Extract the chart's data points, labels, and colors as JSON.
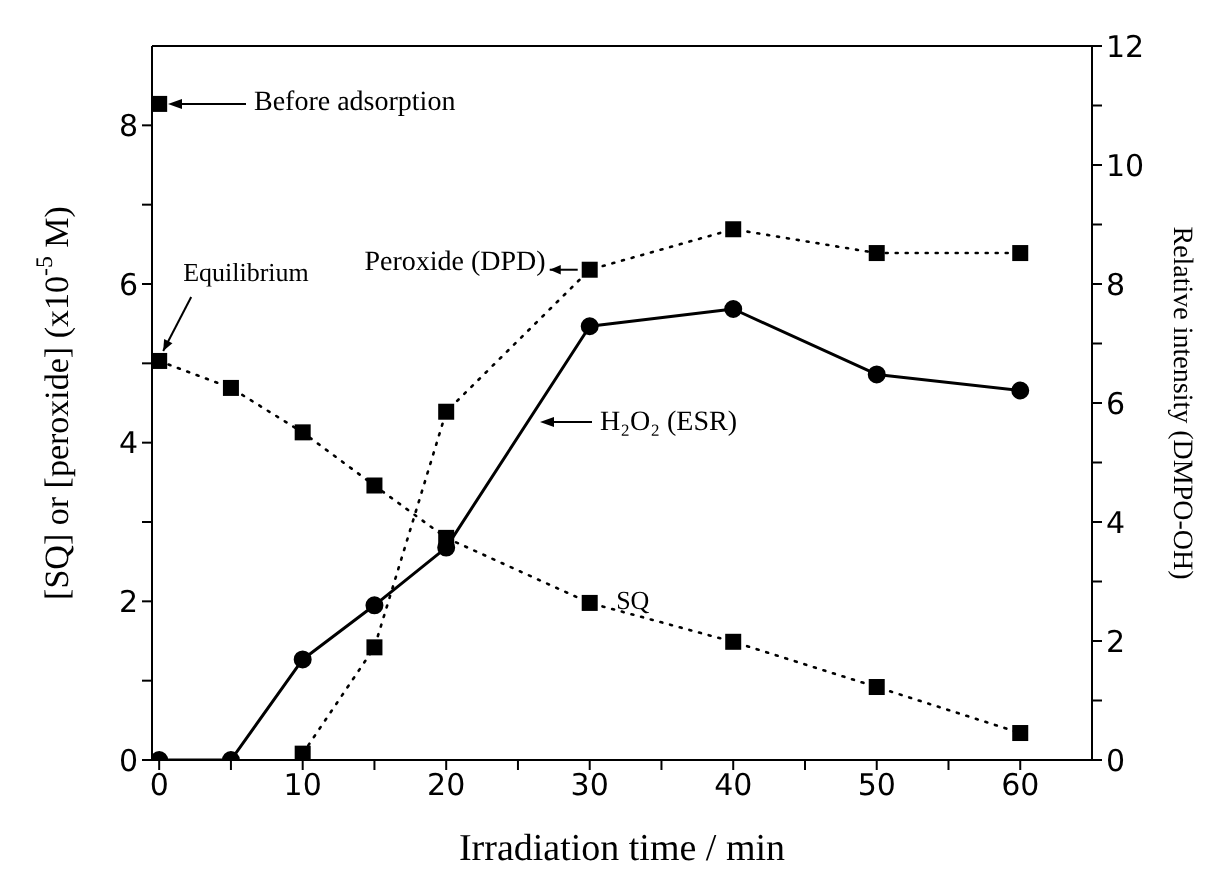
{
  "chart_data": {
    "type": "line",
    "xlabel": "Irradiation time / min",
    "ylabel": "[SQ] or [peroxide] (x10$^{-5}$ M)",
    "y2label": "Relative intensity (DMPO-OH)",
    "xlim": [
      -0.5,
      65
    ],
    "xticks": [
      0,
      {
        "value": 5,
        "label": null
      },
      10,
      {
        "value": 15,
        "label": null
      },
      20,
      {
        "value": 25,
        "label": null
      },
      30,
      {
        "value": 35,
        "label": null
      },
      40,
      {
        "value": 45,
        "label": null
      },
      50,
      {
        "value": 55,
        "label": null
      },
      60
    ],
    "ylim": [
      0,
      9
    ],
    "yticks": [
      0,
      {
        "value": 1,
        "label": null
      },
      2,
      {
        "value": 3,
        "label": null
      },
      4,
      {
        "value": 5,
        "label": null
      },
      6,
      {
        "value": 7,
        "label": null
      },
      8
    ],
    "y2lim": [
      0,
      12
    ],
    "y2ticks": [
      0,
      {
        "value": 1,
        "label": null
      },
      2,
      {
        "value": 3,
        "label": null
      },
      4,
      {
        "value": 5,
        "label": null
      },
      6,
      {
        "value": 7,
        "label": null
      },
      8,
      {
        "value": 9,
        "label": null
      },
      10,
      {
        "value": 11,
        "label": null
      },
      12
    ],
    "series": [
      {
        "type": "scatter",
        "color": "#000000",
        "marker": "square",
        "x": [
          0
        ],
        "values": [
          8.27
        ]
      },
      {
        "color": "#000000",
        "marker": "square",
        "line_style": "dotted",
        "x": [
          0,
          5,
          10,
          15,
          20,
          30,
          40,
          50,
          60
        ],
        "values": [
          5.03,
          4.69,
          4.13,
          3.46,
          2.8,
          1.98,
          1.49,
          0.92,
          0.34
        ]
      },
      {
        "color": "#000000",
        "marker": "square",
        "line_style": "dotted",
        "x": [
          10,
          15,
          20,
          30,
          40,
          50,
          60
        ],
        "values": [
          0.08,
          1.42,
          4.39,
          6.18,
          6.69,
          6.39,
          6.39
        ]
      },
      {
        "color": "#000000",
        "marker": "circle",
        "line_style": "solid",
        "axis": "y2",
        "x": [
          0,
          5,
          10,
          15,
          20,
          30,
          40,
          50,
          60
        ],
        "values": [
          0,
          0,
          1.69,
          2.6,
          3.57,
          7.29,
          7.58,
          6.48,
          6.21
        ]
      }
    ],
    "annotations": [
      "Before adsorption",
      {
        "text": "Equilibrium",
        "x": 0,
        "y": 5.03
      },
      {
        "text": "Peroxide (DPD)",
        "x": 30,
        "y": 6.18
      },
      "H₂O₂ (ESR)",
      {
        "text": "SQ",
        "x": 33,
        "y": 1.9
      }
    ]
  }
}
